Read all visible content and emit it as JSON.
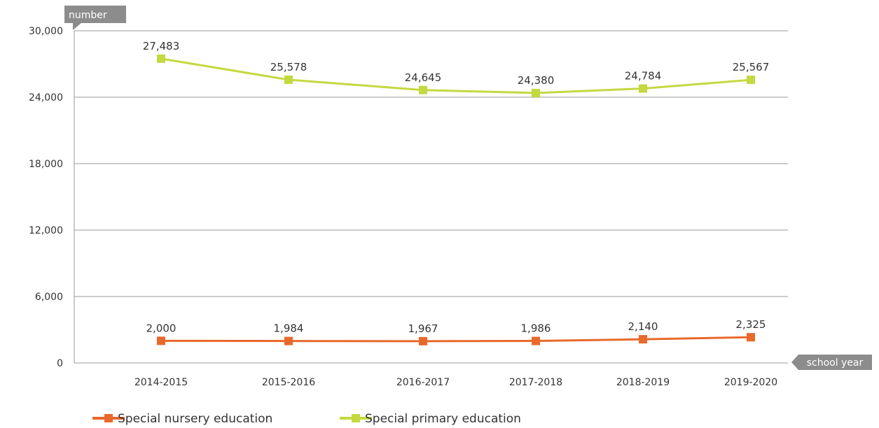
{
  "chart_data": {
    "type": "line",
    "ylabel": "number",
    "xlabel": "school year",
    "ylim": [
      0,
      30000
    ],
    "yticks": [
      0,
      6000,
      12000,
      18000,
      24000,
      30000
    ],
    "ytick_labels": [
      "0",
      "6,000",
      "12,000",
      "18,000",
      "24,000",
      "30,000"
    ],
    "categories": [
      "2014-2015",
      "2015-2016",
      "2016-2017",
      "2017-2018",
      "2018-2019",
      "2019-2020"
    ],
    "grid": true,
    "legend_position": "bottom-left",
    "series": [
      {
        "name": "Special nursery education",
        "color": "#e8692c",
        "values": [
          2000,
          1984,
          1967,
          1986,
          2140,
          2325
        ],
        "labels": [
          "2,000",
          "1,984",
          "1,967",
          "1,986",
          "2,140",
          "2,325"
        ]
      },
      {
        "name": "Special primary education",
        "color": "#c4d940",
        "values": [
          27483,
          25578,
          24645,
          24380,
          24784,
          25567
        ],
        "labels": [
          "27,483",
          "25,578",
          "24,645",
          "24,380",
          "24,784",
          "25,567"
        ]
      }
    ]
  }
}
